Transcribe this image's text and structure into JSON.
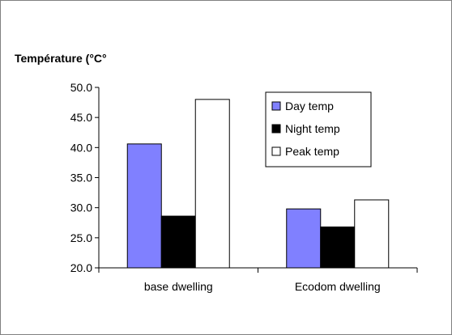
{
  "chart_data": {
    "type": "bar",
    "title": "",
    "xlabel": "",
    "ylabel": "Température (°C°",
    "categories": [
      "base dwelling",
      "Ecodom dwelling"
    ],
    "series": [
      {
        "name": "Day temp",
        "values": [
          40.6,
          29.8
        ],
        "color": "#8080ff"
      },
      {
        "name": "Night temp",
        "values": [
          28.6,
          26.8
        ],
        "color": "#000000"
      },
      {
        "name": "Peak temp",
        "values": [
          48.0,
          31.3
        ],
        "color": "#ffffff"
      }
    ],
    "ylim": [
      20.0,
      50.0
    ],
    "yticks": [
      "20.0",
      "25.0",
      "30.0",
      "35.0",
      "40.0",
      "45.0",
      "50.0"
    ],
    "grid": false,
    "legend": "top-right"
  }
}
